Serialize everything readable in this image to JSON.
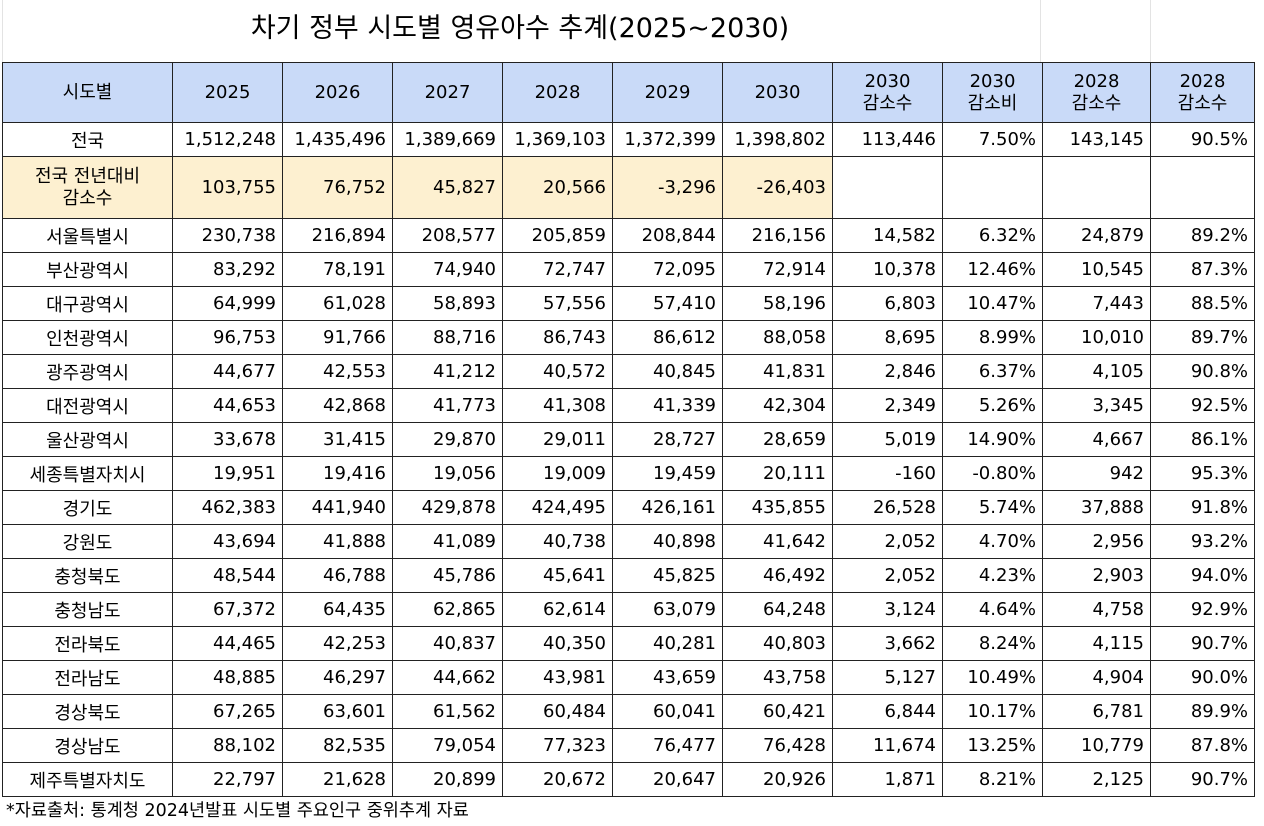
{
  "title": "차기 정부 시도별 영유아수 추계(2025~2030)",
  "headers": [
    [
      "시도별"
    ],
    [
      "2025"
    ],
    [
      "2026"
    ],
    [
      "2027"
    ],
    [
      "2028"
    ],
    [
      "2029"
    ],
    [
      "2030"
    ],
    [
      "2030",
      "감소수"
    ],
    [
      "2030",
      "감소비"
    ],
    [
      "2028",
      "감소수"
    ],
    [
      "2028",
      "감소수"
    ]
  ],
  "rows": [
    {
      "name": [
        "전국"
      ],
      "values": [
        "1,512,248",
        "1,435,496",
        "1,389,669",
        "1,369,103",
        "1,372,399",
        "1,398,802",
        "113,446",
        "7.50%",
        "143,145",
        "90.5%"
      ]
    },
    {
      "name": [
        "전국 전년대비",
        "감소수"
      ],
      "highlight": true,
      "values": [
        "103,755",
        "76,752",
        "45,827",
        "20,566",
        "-3,296",
        "-26,403",
        "",
        "",
        "",
        ""
      ]
    },
    {
      "name": [
        "서울특별시"
      ],
      "values": [
        "230,738",
        "216,894",
        "208,577",
        "205,859",
        "208,844",
        "216,156",
        "14,582",
        "6.32%",
        "24,879",
        "89.2%"
      ]
    },
    {
      "name": [
        "부산광역시"
      ],
      "values": [
        "83,292",
        "78,191",
        "74,940",
        "72,747",
        "72,095",
        "72,914",
        "10,378",
        "12.46%",
        "10,545",
        "87.3%"
      ]
    },
    {
      "name": [
        "대구광역시"
      ],
      "values": [
        "64,999",
        "61,028",
        "58,893",
        "57,556",
        "57,410",
        "58,196",
        "6,803",
        "10.47%",
        "7,443",
        "88.5%"
      ]
    },
    {
      "name": [
        "인천광역시"
      ],
      "values": [
        "96,753",
        "91,766",
        "88,716",
        "86,743",
        "86,612",
        "88,058",
        "8,695",
        "8.99%",
        "10,010",
        "89.7%"
      ]
    },
    {
      "name": [
        "광주광역시"
      ],
      "values": [
        "44,677",
        "42,553",
        "41,212",
        "40,572",
        "40,845",
        "41,831",
        "2,846",
        "6.37%",
        "4,105",
        "90.8%"
      ]
    },
    {
      "name": [
        "대전광역시"
      ],
      "values": [
        "44,653",
        "42,868",
        "41,773",
        "41,308",
        "41,339",
        "42,304",
        "2,349",
        "5.26%",
        "3,345",
        "92.5%"
      ]
    },
    {
      "name": [
        "울산광역시"
      ],
      "values": [
        "33,678",
        "31,415",
        "29,870",
        "29,011",
        "28,727",
        "28,659",
        "5,019",
        "14.90%",
        "4,667",
        "86.1%"
      ]
    },
    {
      "name": [
        "세종특별자치시"
      ],
      "values": [
        "19,951",
        "19,416",
        "19,056",
        "19,009",
        "19,459",
        "20,111",
        "-160",
        "-0.80%",
        "942",
        "95.3%"
      ]
    },
    {
      "name": [
        "경기도"
      ],
      "values": [
        "462,383",
        "441,940",
        "429,878",
        "424,495",
        "426,161",
        "435,855",
        "26,528",
        "5.74%",
        "37,888",
        "91.8%"
      ]
    },
    {
      "name": [
        "강원도"
      ],
      "values": [
        "43,694",
        "41,888",
        "41,089",
        "40,738",
        "40,898",
        "41,642",
        "2,052",
        "4.70%",
        "2,956",
        "93.2%"
      ]
    },
    {
      "name": [
        "충청북도"
      ],
      "values": [
        "48,544",
        "46,788",
        "45,786",
        "45,641",
        "45,825",
        "46,492",
        "2,052",
        "4.23%",
        "2,903",
        "94.0%"
      ]
    },
    {
      "name": [
        "충청남도"
      ],
      "values": [
        "67,372",
        "64,435",
        "62,865",
        "62,614",
        "63,079",
        "64,248",
        "3,124",
        "4.64%",
        "4,758",
        "92.9%"
      ]
    },
    {
      "name": [
        "전라북도"
      ],
      "values": [
        "44,465",
        "42,253",
        "40,837",
        "40,350",
        "40,281",
        "40,803",
        "3,662",
        "8.24%",
        "4,115",
        "90.7%"
      ]
    },
    {
      "name": [
        "전라남도"
      ],
      "values": [
        "48,885",
        "46,297",
        "44,662",
        "43,981",
        "43,659",
        "43,758",
        "5,127",
        "10.49%",
        "4,904",
        "90.0%"
      ]
    },
    {
      "name": [
        "경상북도"
      ],
      "values": [
        "67,265",
        "63,601",
        "61,562",
        "60,484",
        "60,041",
        "60,421",
        "6,844",
        "10.17%",
        "6,781",
        "89.9%"
      ]
    },
    {
      "name": [
        "경상남도"
      ],
      "values": [
        "88,102",
        "82,535",
        "79,054",
        "77,323",
        "76,477",
        "76,428",
        "11,674",
        "13.25%",
        "10,779",
        "87.8%"
      ]
    },
    {
      "name": [
        "제주특별자치도"
      ],
      "values": [
        "22,797",
        "21,628",
        "20,899",
        "20,672",
        "20,647",
        "20,926",
        "1,871",
        "8.21%",
        "2,125",
        "90.7%"
      ]
    }
  ],
  "footnote": "*자료출처:  통계청 2024년발표 시도별 주요인구 중위추계 자료"
}
